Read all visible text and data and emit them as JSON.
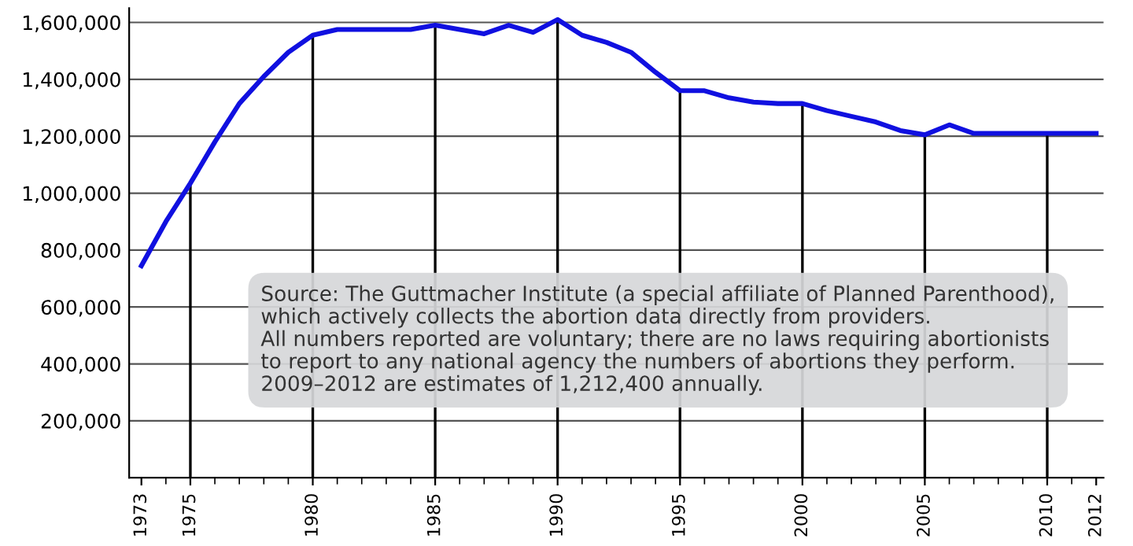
{
  "chart_data": {
    "type": "line",
    "x": [
      1973,
      1974,
      1975,
      1976,
      1977,
      1978,
      1979,
      1980,
      1981,
      1982,
      1983,
      1984,
      1985,
      1986,
      1987,
      1988,
      1989,
      1990,
      1991,
      1992,
      1993,
      1994,
      1995,
      1996,
      1997,
      1998,
      1999,
      2000,
      2001,
      2002,
      2003,
      2004,
      2005,
      2006,
      2007,
      2008,
      2009,
      2010,
      2011,
      2012
    ],
    "series": [
      {
        "color": "#1010e0",
        "values": [
          745000,
          900000,
          1035000,
          1180000,
          1315000,
          1410000,
          1495000,
          1555000,
          1575000,
          1575000,
          1575000,
          1575000,
          1590000,
          1575000,
          1560000,
          1590000,
          1565000,
          1610000,
          1555000,
          1530000,
          1495000,
          1425000,
          1360000,
          1360000,
          1335000,
          1320000,
          1315000,
          1315000,
          1290000,
          1270000,
          1250000,
          1220000,
          1205000,
          1240000,
          1210000,
          1210000,
          1210000,
          1210000,
          1210000,
          1210000
        ]
      }
    ],
    "xlim": [
      1972.5,
      2012.3
    ],
    "xticks": [
      1973,
      1975,
      1980,
      1985,
      1990,
      1995,
      2000,
      2005,
      2010,
      2012
    ],
    "ylim": [
      0,
      1650000
    ],
    "yticks": [
      {
        "value": 0,
        "label": null
      },
      {
        "value": 200000,
        "label": "200,000"
      },
      {
        "value": 400000,
        "label": "400,000"
      },
      {
        "value": 600000,
        "label": "600,000"
      },
      {
        "value": 800000,
        "label": "800,000"
      },
      {
        "value": 1000000,
        "label": "1,000,000"
      },
      {
        "value": 1200000,
        "label": "1,200,000"
      },
      {
        "value": 1400000,
        "label": "1,400,000"
      },
      {
        "value": 1600000,
        "label": "1,600,000"
      }
    ],
    "grid": true,
    "marker": "none",
    "line_style": "solid",
    "annotations": [
      "Source: The Guttmacher Institute (a special affiliate of Planned Parenthood),\nwhich actively collects the abortion data directly from providers.\nAll numbers reported are voluntary; there are no laws requiring abortionists\nto report to any national agency the numbers of abortions they perform.\n2009–2012 are estimates of 1,212,400 annually."
    ]
  }
}
